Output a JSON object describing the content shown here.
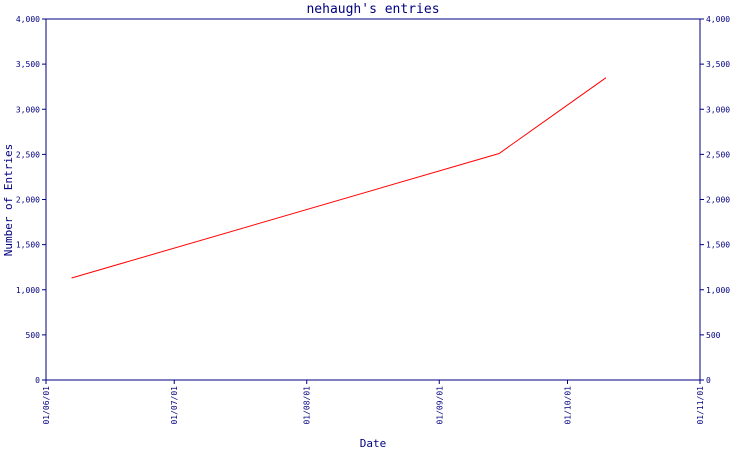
{
  "chart_data": {
    "type": "line",
    "title": "nehaugh's entries",
    "xlabel": "Date",
    "ylabel": "Number of Entries",
    "ylim": [
      0,
      4000
    ],
    "y_ticks": [
      0,
      500,
      1000,
      1500,
      2000,
      2500,
      3000,
      3500,
      4000
    ],
    "y_tick_labels": [
      "0",
      "500",
      "1,000",
      "1,500",
      "2,000",
      "2,500",
      "3,000",
      "3,500",
      "4,000"
    ],
    "x_ticks": [
      "2001-06-01",
      "2001-07-01",
      "2001-08-01",
      "2001-09-01",
      "2001-10-01",
      "2001-11-01"
    ],
    "x_tick_labels": [
      "01/06/01",
      "01/07/01",
      "01/08/01",
      "01/09/01",
      "01/10/01",
      "01/11/01"
    ],
    "x_range": [
      "2001-06-01",
      "2001-11-01"
    ],
    "series": [
      {
        "color": "#ff0000",
        "points": [
          {
            "x": "2001-06-07",
            "y": 1130
          },
          {
            "x": "2001-09-15",
            "y": 2510
          },
          {
            "x": "2001-10-10",
            "y": 3350
          }
        ]
      }
    ],
    "grid": false,
    "axis_color": "#000080"
  }
}
